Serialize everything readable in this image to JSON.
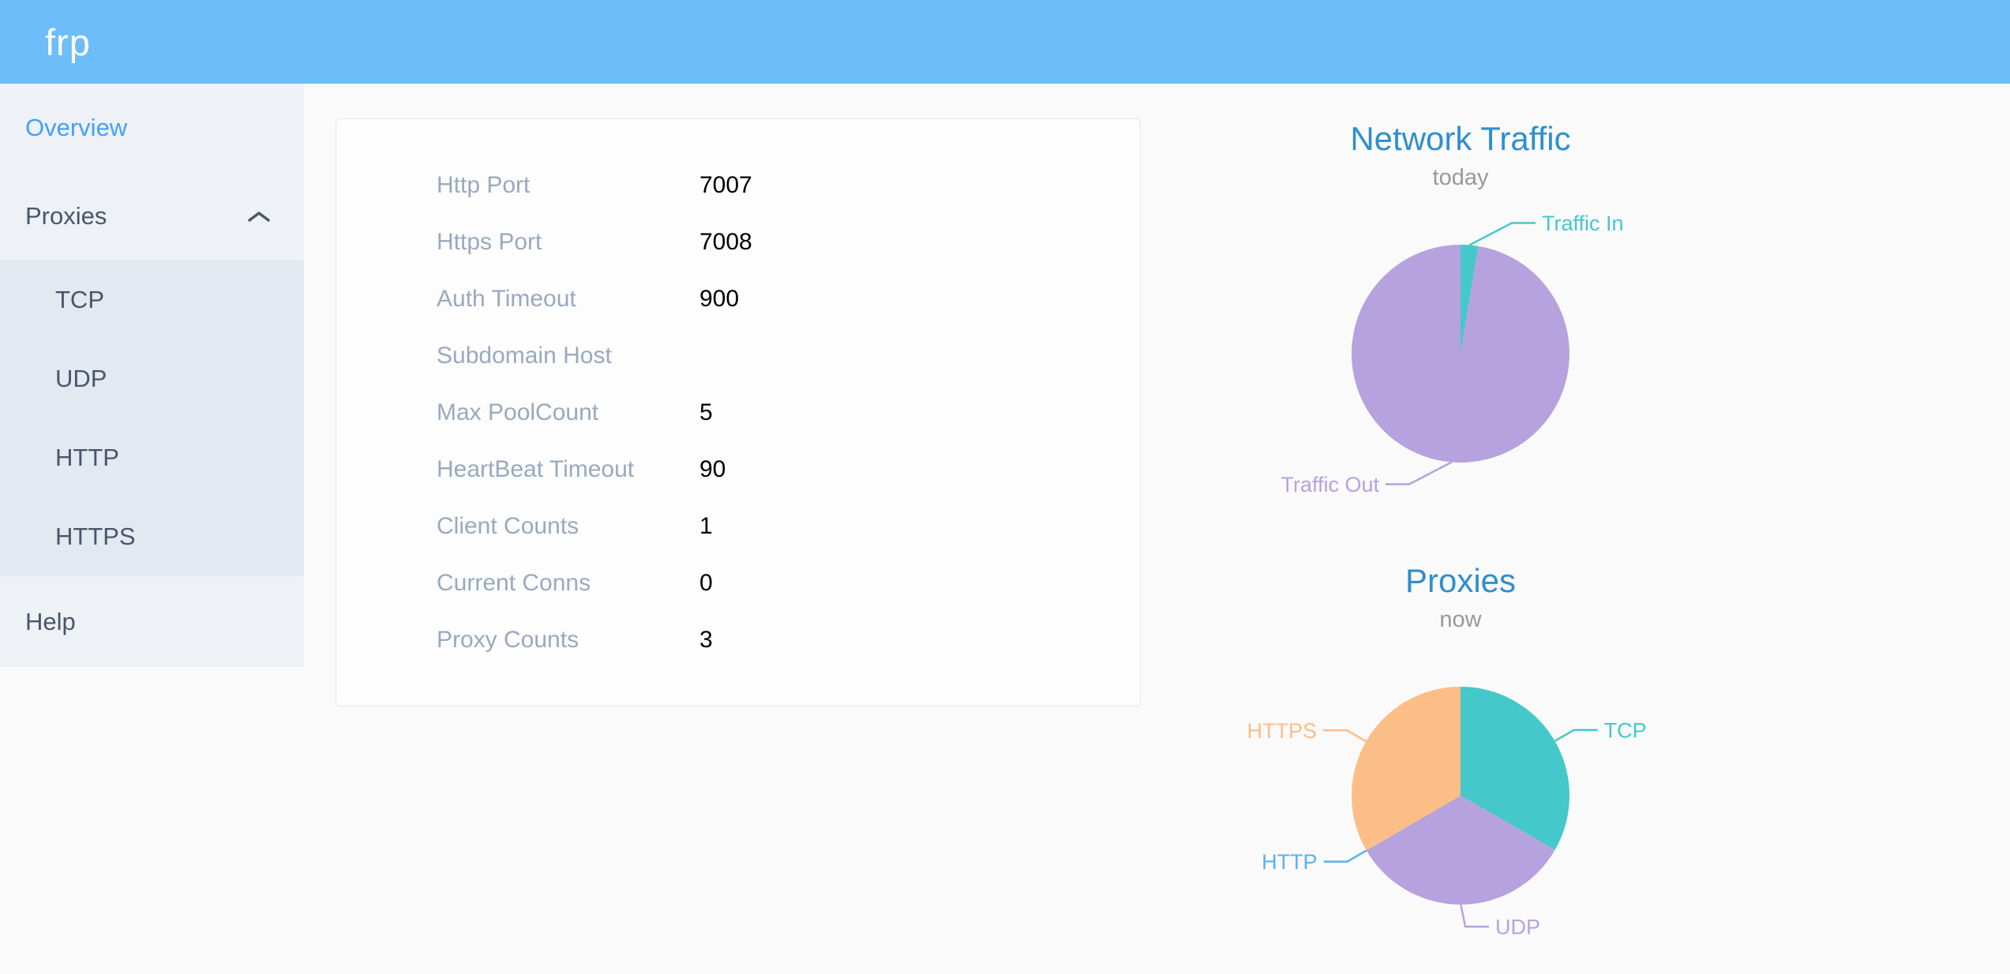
{
  "header": {
    "logo": "frp"
  },
  "sidebar": {
    "items": [
      {
        "label": "Overview",
        "active": true
      },
      {
        "label": "Proxies",
        "expanded": true
      },
      {
        "label": "TCP"
      },
      {
        "label": "UDP"
      },
      {
        "label": "HTTP"
      },
      {
        "label": "HTTPS"
      },
      {
        "label": "Help"
      }
    ]
  },
  "overview": {
    "rows": [
      {
        "label": "Http Port",
        "value": "7007"
      },
      {
        "label": "Https Port",
        "value": "7008"
      },
      {
        "label": "Auth Timeout",
        "value": "900"
      },
      {
        "label": "Subdomain Host",
        "value": ""
      },
      {
        "label": "Max PoolCount",
        "value": "5"
      },
      {
        "label": "HeartBeat Timeout",
        "value": "90"
      },
      {
        "label": "Client Counts",
        "value": "1"
      },
      {
        "label": "Current Conns",
        "value": "0"
      },
      {
        "label": "Proxy Counts",
        "value": "3"
      }
    ]
  },
  "chart_data": [
    {
      "type": "pie",
      "title": "Network Traffic",
      "subtitle": "today",
      "legend_position": "outside-labels",
      "slices": [
        {
          "label": "Traffic In",
          "percent": 2.6,
          "color": "#45C8C9"
        },
        {
          "label": "Traffic Out",
          "percent": 97.4,
          "color": "#B6A2DE"
        }
      ]
    },
    {
      "type": "pie",
      "title": "Proxies",
      "subtitle": "now",
      "legend_position": "outside-labels",
      "slices": [
        {
          "label": "TCP",
          "percent": 33.3,
          "color": "#45C8C9"
        },
        {
          "label": "UDP",
          "percent": 33.3,
          "color": "#B6A2DE"
        },
        {
          "label": "HTTP",
          "percent": 0,
          "color": "#5AB1EF"
        },
        {
          "label": "HTTPS",
          "percent": 33.4,
          "color": "#FBBE87"
        }
      ]
    }
  ],
  "colors": {
    "header_bg": "#6CBDFA",
    "sidebar_bg": "#EEF1F6",
    "submenu_bg": "#E4E8F1",
    "menu_text": "#48576A",
    "menu_active": "#42A0FF",
    "chart_title": "#2E8FCD",
    "card_label": "#99A9BF"
  }
}
